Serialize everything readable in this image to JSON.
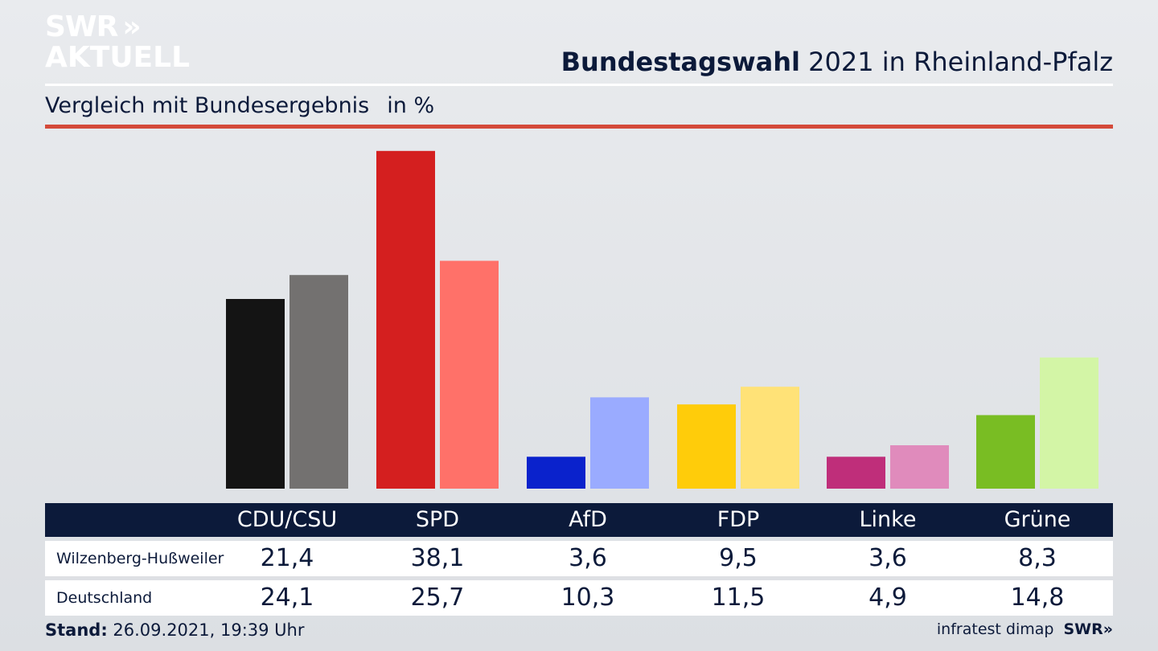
{
  "logo": {
    "line1": "SWR",
    "line2": "AKTUELL",
    "chevrons": "»"
  },
  "header": {
    "title_bold": "Bundestagswahl",
    "title_rest": " 2021 in Rheinland-Pfalz",
    "subtitle": "Vergleich mit Bundesergebnis",
    "unit": "in %"
  },
  "colors": {
    "accent_red_rule": "#d44a3a",
    "navy": "#0c1a3a"
  },
  "chart_data": {
    "type": "bar",
    "categories": [
      "CDU/CSU",
      "SPD",
      "AfD",
      "FDP",
      "Linke",
      "Grüne"
    ],
    "series": [
      {
        "name": "Wilzenberg-Hußweiler",
        "values": [
          21.4,
          38.1,
          3.6,
          9.5,
          3.6,
          8.3
        ],
        "colors": [
          "#141414",
          "#d41f1f",
          "#0a22cc",
          "#ffcc0a",
          "#bf2e7a",
          "#79bd23"
        ]
      },
      {
        "name": "Deutschland",
        "values": [
          24.1,
          25.7,
          10.3,
          11.5,
          4.9,
          14.8
        ],
        "colors": [
          "#737170",
          "#ff7169",
          "#9aabff",
          "#ffe277",
          "#e08bbc",
          "#d3f5a6"
        ]
      }
    ],
    "title": "Bundestagswahl 2021 in Rheinland-Pfalz",
    "subtitle": "Vergleich mit Bundesergebnis",
    "unit": "in %",
    "grid": false
  },
  "footer": {
    "stand_label": "Stand:",
    "stand_value": " 26.09.2021, 19:39 Uhr",
    "source": "infratest dimap",
    "brand": "SWR»"
  }
}
